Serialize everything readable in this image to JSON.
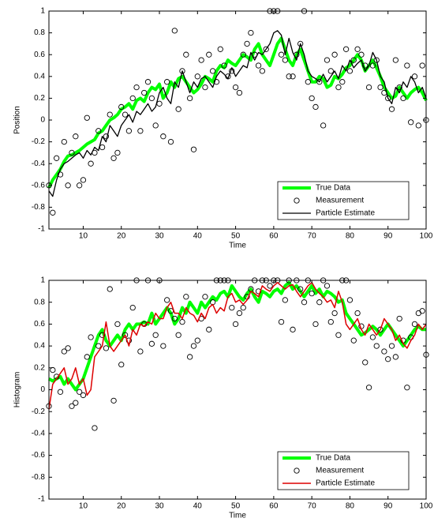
{
  "chart_data": [
    {
      "type": "line",
      "xlabel": "Time",
      "ylabel": "Position",
      "legend": "lower right",
      "xlim": [
        1,
        100
      ],
      "ylim": [
        -1,
        1
      ],
      "xticks": [
        10,
        20,
        30,
        40,
        50,
        60,
        70,
        80,
        90,
        100
      ],
      "yticks": [
        -1,
        -0.8,
        -0.6,
        -0.4,
        -0.2,
        0,
        0.2,
        0.4,
        0.6,
        0.8,
        1
      ],
      "x": [
        1,
        2,
        3,
        4,
        5,
        6,
        7,
        8,
        9,
        10,
        11,
        12,
        13,
        14,
        15,
        16,
        17,
        18,
        19,
        20,
        21,
        22,
        23,
        24,
        25,
        26,
        27,
        28,
        29,
        30,
        31,
        32,
        33,
        34,
        35,
        36,
        37,
        38,
        39,
        40,
        41,
        42,
        43,
        44,
        45,
        46,
        47,
        48,
        49,
        50,
        51,
        52,
        53,
        54,
        55,
        56,
        57,
        58,
        59,
        60,
        61,
        62,
        63,
        64,
        65,
        66,
        67,
        68,
        69,
        70,
        71,
        72,
        73,
        74,
        75,
        76,
        77,
        78,
        79,
        80,
        81,
        82,
        83,
        84,
        85,
        86,
        87,
        88,
        89,
        90,
        91,
        92,
        93,
        94,
        95,
        96,
        97,
        98,
        99,
        100
      ],
      "series": [
        {
          "name": "True Data",
          "color": "#00ff00",
          "mode": "line",
          "line_width": 4,
          "values": [
            -0.62,
            -0.55,
            -0.5,
            -0.45,
            -0.38,
            -0.33,
            -0.32,
            -0.3,
            -0.28,
            -0.25,
            -0.22,
            -0.2,
            -0.18,
            -0.12,
            -0.1,
            -0.05,
            0,
            0.02,
            0.05,
            0.1,
            0.12,
            0.15,
            0.1,
            0.18,
            0.2,
            0.17,
            0.25,
            0.3,
            0.28,
            0.33,
            0.2,
            0.25,
            0.35,
            0.3,
            0.38,
            0.4,
            0.35,
            0.3,
            0.25,
            0.28,
            0.33,
            0.4,
            0.38,
            0.35,
            0.45,
            0.5,
            0.48,
            0.55,
            0.52,
            0.5,
            0.55,
            0.6,
            0.58,
            0.55,
            0.65,
            0.7,
            0.6,
            0.55,
            0.5,
            0.6,
            0.7,
            0.75,
            0.65,
            0.55,
            0.5,
            0.6,
            0.65,
            0.55,
            0.45,
            0.35,
            0.35,
            0.4,
            0.38,
            0.3,
            0.32,
            0.4,
            0.38,
            0.42,
            0.48,
            0.5,
            0.55,
            0.6,
            0.55,
            0.45,
            0.5,
            0.55,
            0.48,
            0.4,
            0.3,
            0.25,
            0.2,
            0.22,
            0.3,
            0.25,
            0.2,
            0.25,
            0.28,
            0.3,
            0.25,
            0.18
          ]
        },
        {
          "name": "Measurement",
          "color": "#000000",
          "mode": "markers",
          "values": [
            -0.6,
            -0.85,
            -0.35,
            -0.5,
            -0.2,
            -0.6,
            -0.3,
            -0.15,
            -0.6,
            -0.55,
            0.02,
            -0.4,
            -0.3,
            -0.1,
            -0.25,
            -0.15,
            0.05,
            -0.35,
            -0.3,
            0.12,
            0.05,
            -0.1,
            0.2,
            0.3,
            -0.1,
            0.25,
            0.35,
            0.2,
            -0.05,
            0.15,
            -0.15,
            0.35,
            -0.2,
            0.82,
            0.1,
            0.45,
            0.6,
            0.2,
            -0.27,
            0.4,
            0.55,
            0.3,
            0.6,
            0.45,
            0.35,
            0.65,
            0.5,
            0.4,
            0.45,
            0.3,
            0.25,
            0.6,
            0.7,
            0.8,
            0.6,
            0.5,
            0.45,
            0.65,
            1,
            1,
            1,
            0.6,
            0.55,
            0.4,
            0.4,
            0.6,
            0.7,
            1,
            0.35,
            0.2,
            0.12,
            0.35,
            -0.05,
            0.55,
            0.45,
            0.6,
            0.3,
            0.35,
            0.65,
            0.45,
            0.55,
            0.65,
            0.6,
            0.5,
            0.3,
            0.5,
            0.55,
            0.3,
            0.25,
            0.2,
            0.1,
            0.55,
            0.3,
            0.2,
            0.5,
            -0.02,
            0.4,
            -0.05,
            0.5,
            0
          ]
        },
        {
          "name": "Particle Estimate",
          "color": "#000000",
          "mode": "line",
          "line_width": 1.3,
          "values": [
            -0.65,
            -0.7,
            -0.55,
            -0.45,
            -0.4,
            -0.38,
            -0.35,
            -0.32,
            -0.3,
            -0.35,
            -0.28,
            -0.32,
            -0.25,
            -0.28,
            -0.15,
            -0.2,
            -0.05,
            -0.1,
            -0.15,
            -0.05,
            0,
            0.05,
            -0.02,
            0.08,
            0.05,
            0.1,
            0.15,
            0.08,
            0.12,
            0.25,
            0.3,
            0.2,
            0.15,
            0.35,
            0.3,
            0.45,
            0.35,
            0.25,
            0.35,
            0.3,
            0.38,
            0.4,
            0.35,
            0.3,
            0.4,
            0.45,
            0.42,
            0.38,
            0.48,
            0.4,
            0.45,
            0.5,
            0.48,
            0.62,
            0.55,
            0.62,
            0.6,
            0.65,
            0.7,
            0.8,
            0.82,
            0.78,
            0.6,
            0.75,
            0.62,
            0.55,
            0.7,
            0.6,
            0.45,
            0.4,
            0.38,
            0.35,
            0.42,
            0.35,
            0.4,
            0.45,
            0.38,
            0.5,
            0.45,
            0.55,
            0.48,
            0.52,
            0.55,
            0.45,
            0.5,
            0.62,
            0.55,
            0.4,
            0.35,
            0.2,
            0.15,
            0.3,
            0.25,
            0.35,
            0.3,
            0.4,
            0.35,
            0.25,
            0.3,
            0.2
          ]
        }
      ]
    },
    {
      "type": "line",
      "xlabel": "Time",
      "ylabel": "Histogram",
      "legend": "lower right",
      "xlim": [
        1,
        100
      ],
      "ylim": [
        -1,
        1
      ],
      "xticks": [
        10,
        20,
        30,
        40,
        50,
        60,
        70,
        80,
        90,
        100
      ],
      "yticks": [
        -1,
        -0.8,
        -0.6,
        -0.4,
        -0.2,
        0,
        0.2,
        0.4,
        0.6,
        0.8,
        1
      ],
      "x": [
        1,
        2,
        3,
        4,
        5,
        6,
        7,
        8,
        9,
        10,
        11,
        12,
        13,
        14,
        15,
        16,
        17,
        18,
        19,
        20,
        21,
        22,
        23,
        24,
        25,
        26,
        27,
        28,
        29,
        30,
        31,
        32,
        33,
        34,
        35,
        36,
        37,
        38,
        39,
        40,
        41,
        42,
        43,
        44,
        45,
        46,
        47,
        48,
        49,
        50,
        51,
        52,
        53,
        54,
        55,
        56,
        57,
        58,
        59,
        60,
        61,
        62,
        63,
        64,
        65,
        66,
        67,
        68,
        69,
        70,
        71,
        72,
        73,
        74,
        75,
        76,
        77,
        78,
        79,
        80,
        81,
        82,
        83,
        84,
        85,
        86,
        87,
        88,
        89,
        90,
        91,
        92,
        93,
        94,
        95,
        96,
        97,
        98,
        99,
        100
      ],
      "series": [
        {
          "name": "True Data",
          "color": "#00ff00",
          "mode": "line",
          "line_width": 4,
          "values": [
            0.1,
            0.08,
            0.1,
            0.12,
            0.05,
            0.1,
            0.05,
            0,
            0.05,
            0.1,
            0.2,
            0.3,
            0.4,
            0.5,
            0.55,
            0.45,
            0.4,
            0.45,
            0.5,
            0.45,
            0.55,
            0.6,
            0.55,
            0.6,
            0.6,
            0.62,
            0.6,
            0.7,
            0.6,
            0.65,
            0.7,
            0.75,
            0.7,
            0.6,
            0.65,
            0.75,
            0.7,
            0.8,
            0.75,
            0.7,
            0.8,
            0.75,
            0.8,
            0.85,
            0.82,
            0.88,
            0.9,
            0.85,
            0.95,
            0.9,
            0.85,
            0.82,
            0.88,
            0.92,
            0.85,
            0.8,
            0.9,
            0.88,
            0.85,
            0.9,
            0.92,
            0.88,
            0.95,
            0.98,
            0.92,
            0.95,
            0.9,
            0.85,
            0.9,
            0.95,
            0.88,
            0.92,
            0.85,
            0.9,
            0.88,
            0.85,
            0.8,
            0.82,
            0.7,
            0.65,
            0.6,
            0.55,
            0.5,
            0.52,
            0.55,
            0.58,
            0.55,
            0.5,
            0.55,
            0.6,
            0.55,
            0.5,
            0.45,
            0.4,
            0.45,
            0.5,
            0.55,
            0.58,
            0.55,
            0.55
          ]
        },
        {
          "name": "Measurement",
          "color": "#000000",
          "mode": "markers",
          "values": [
            -0.15,
            0.18,
            0.12,
            -0.02,
            0.35,
            0.38,
            -0.15,
            -0.12,
            -0.02,
            -0.05,
            0.3,
            0.48,
            -0.35,
            0.4,
            0.5,
            0.38,
            0.92,
            -0.1,
            0.6,
            0.23,
            0.5,
            0.45,
            0.75,
            1,
            0.35,
            0.6,
            1,
            0.42,
            0.5,
            1,
            0.4,
            0.82,
            0.72,
            0.65,
            0.5,
            0.62,
            0.85,
            0.3,
            0.4,
            0.45,
            0.65,
            0.85,
            0.55,
            0.8,
            1,
            1,
            1,
            1,
            0.75,
            0.6,
            0.7,
            0.75,
            0.85,
            0.92,
            1,
            0.9,
            1,
            1,
            0.95,
            1,
            1,
            0.62,
            0.82,
            1,
            0.55,
            1,
            0.92,
            0.8,
            1,
            0.88,
            0.6,
            0.8,
            1,
            0.95,
            0.62,
            0.7,
            0.5,
            1,
            1,
            0.82,
            0.45,
            0.7,
            0.58,
            0.25,
            0.02,
            0.48,
            0.4,
            0.55,
            0.35,
            0.28,
            0.4,
            0.3,
            0.65,
            0.45,
            0.02,
            0.48,
            0.6,
            0.7,
            0.72,
            0.32
          ]
        },
        {
          "name": "Particle Estimate",
          "color": "#dd0000",
          "mode": "line",
          "line_width": 1.5,
          "values": [
            -0.18,
            0.05,
            0.1,
            0.15,
            0.2,
            0.05,
            0.1,
            0.2,
            0.05,
            0.1,
            -0.05,
            0,
            0.3,
            0.35,
            0.4,
            0.62,
            0.4,
            0.35,
            0.4,
            0.45,
            0.5,
            0.4,
            0.55,
            0.5,
            0.6,
            0.58,
            0.62,
            0.6,
            0.7,
            0.65,
            0.65,
            0.75,
            0.8,
            0.7,
            0.7,
            0.65,
            0.75,
            0.7,
            0.68,
            0.62,
            0.7,
            0.65,
            0.75,
            0.78,
            0.7,
            0.75,
            0.72,
            0.85,
            0.88,
            0.8,
            0.82,
            0.78,
            0.82,
            0.9,
            0.88,
            0.85,
            0.95,
            0.92,
            0.9,
            0.95,
            0.98,
            0.95,
            0.92,
            0.95,
            0.96,
            0.9,
            0.85,
            0.9,
            0.95,
            0.98,
            0.92,
            0.88,
            0.85,
            0.8,
            0.82,
            0.75,
            0.9,
            0.8,
            0.6,
            0.55,
            0.6,
            0.65,
            0.55,
            0.5,
            0.6,
            0.55,
            0.5,
            0.55,
            0.65,
            0.6,
            0.55,
            0.45,
            0.5,
            0.42,
            0.38,
            0.45,
            0.5,
            0.6,
            0.55,
            0.6
          ]
        }
      ]
    }
  ]
}
